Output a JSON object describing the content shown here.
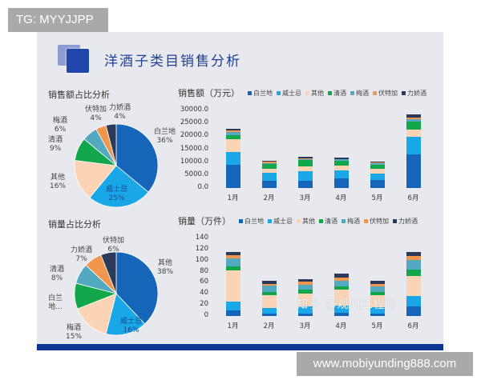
{
  "overlay": {
    "top_tag": "TG: MYYJJPP",
    "bottom_tag": "www.mobiyunding888.com",
    "watermark": "知乎 @观向工程师"
  },
  "slide": {
    "title": "洋酒子类目销售分析",
    "colors": {
      "白兰地": "#1565b8",
      "威士忌": "#1aa7e8",
      "其他": "#fbd3b5",
      "清酒": "#12a74b",
      "梅酒": "#52a9c0",
      "伏特加": "#f1964f",
      "力娇酒": "#2b3a58",
      "footer": "#0d3592",
      "background": "#e8e9ee"
    }
  },
  "chart_data": [
    {
      "type": "pie",
      "title": "销售额占比分析",
      "labels": [
        "白兰地",
        "威士忌",
        "其他",
        "清酒",
        "梅酒",
        "伏特加",
        "力娇酒"
      ],
      "values": [
        36,
        25,
        16,
        9,
        6,
        4,
        4
      ],
      "value_labels": [
        "36%",
        "25%",
        "16%",
        "9%",
        "6%",
        "4%",
        "4%"
      ],
      "colors": [
        "#1565b8",
        "#1aa7e8",
        "#fbd3b5",
        "#12a74b",
        "#52a9c0",
        "#f1964f",
        "#2b3a58"
      ]
    },
    {
      "type": "pie",
      "title": "销量占比分析",
      "labels": [
        "其他",
        "威士忌",
        "梅酒",
        "白兰地",
        "清酒",
        "力娇酒",
        "伏特加"
      ],
      "display_labels": [
        "其他",
        "威士忌",
        "梅酒",
        "白兰\n地...",
        "清酒",
        "力娇酒",
        "伏特加"
      ],
      "values": [
        38,
        16,
        15,
        10,
        8,
        7,
        6
      ],
      "value_labels": [
        "38%",
        "16%",
        "15%",
        "",
        "8%",
        "7%",
        "6%"
      ],
      "colors": [
        "#1565b8",
        "#1aa7e8",
        "#fbd3b5",
        "#12a74b",
        "#52a9c0",
        "#f1964f",
        "#2b3a58"
      ]
    },
    {
      "type": "bar",
      "stacked": true,
      "title": "销售额（万元）",
      "categories": [
        "1月",
        "2月",
        "3月",
        "4月",
        "5月",
        "6月"
      ],
      "ylim": [
        0,
        30000
      ],
      "yticks": [
        "30000.0",
        "25000.0",
        "20000.0",
        "15000.0",
        "10000.0",
        "5000.0",
        "0.0"
      ],
      "legend_position": "top",
      "series": [
        {
          "name": "白兰地",
          "color": "#1565b8",
          "values": [
            9000,
            2700,
            2700,
            3600,
            3100,
            13000
          ]
        },
        {
          "name": "威士忌",
          "color": "#1aa7e8",
          "values": [
            5000,
            3100,
            3900,
            3200,
            2600,
            6900
          ]
        },
        {
          "name": "其他",
          "color": "#fbd3b5",
          "values": [
            5000,
            1500,
            1700,
            2000,
            1700,
            2600
          ]
        },
        {
          "name": "清酒",
          "color": "#12a74b",
          "values": [
            1500,
            1900,
            2400,
            1700,
            1700,
            3100
          ]
        },
        {
          "name": "梅酒",
          "color": "#52a9c0",
          "values": [
            1200,
            500,
            500,
            500,
            400,
            900
          ]
        },
        {
          "name": "伏特加",
          "color": "#f1964f",
          "values": [
            600,
            400,
            300,
            300,
            300,
            800
          ]
        },
        {
          "name": "力娇酒",
          "color": "#2b3a58",
          "values": [
            700,
            400,
            500,
            500,
            400,
            1100
          ]
        }
      ]
    },
    {
      "type": "bar",
      "stacked": true,
      "title": "销量（万件）",
      "categories": [
        "1月",
        "2月",
        "3月",
        "4月",
        "5月",
        "6月"
      ],
      "ylim": [
        0,
        140
      ],
      "yticks": [
        "140",
        "120",
        "100",
        "80",
        "60",
        "40",
        "20",
        "0"
      ],
      "legend_position": "top",
      "series": [
        {
          "name": "白兰地",
          "color": "#1565b8",
          "values": [
            10.5,
            4,
            4,
            6,
            4,
            18
          ]
        },
        {
          "name": "威士忌",
          "color": "#1aa7e8",
          "values": [
            15.5,
            11,
            13.5,
            13,
            11.5,
            17.5
          ]
        },
        {
          "name": "其他",
          "color": "#fbd3b5",
          "values": [
            56,
            23,
            23.5,
            28,
            22.5,
            36
          ]
        },
        {
          "name": "清酒",
          "color": "#12a74b",
          "values": [
            7,
            5,
            6.5,
            6.5,
            5,
            12
          ]
        },
        {
          "name": "梅酒",
          "color": "#52a9c0",
          "values": [
            15,
            12,
            9.5,
            10.5,
            10,
            17.5
          ]
        },
        {
          "name": "伏特加",
          "color": "#f1964f",
          "values": [
            6,
            3.5,
            5,
            6,
            5.5,
            7
          ]
        },
        {
          "name": "力娇酒",
          "color": "#2b3a58",
          "values": [
            5,
            4.5,
            5,
            6,
            5.5,
            7.5
          ]
        }
      ]
    }
  ]
}
